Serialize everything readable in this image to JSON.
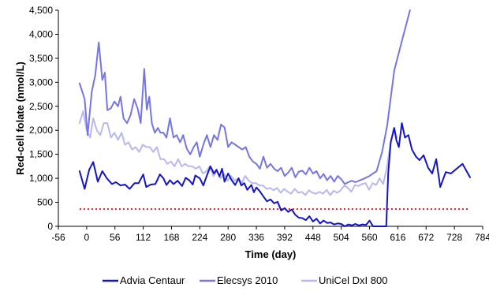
{
  "chart_data": {
    "type": "line",
    "title": "",
    "xlabel": "Time (day)",
    "ylabel": "Red-cell folate (nmol/L)",
    "xlim": [
      -56,
      784
    ],
    "ylim": [
      0,
      4500
    ],
    "x_ticks": [
      -56,
      0,
      56,
      112,
      168,
      224,
      280,
      336,
      392,
      448,
      504,
      560,
      616,
      672,
      728,
      784
    ],
    "y_ticks": [
      0,
      500,
      1000,
      1500,
      2000,
      2500,
      3000,
      3500,
      4000,
      4500
    ],
    "y_tick_labels": [
      "0",
      "500",
      "1,000",
      "1,500",
      "2,000",
      "2,500",
      "3,000",
      "3,500",
      "4,000",
      "4,500"
    ],
    "grid": false,
    "legend_position": "bottom",
    "reference_line": {
      "y": 360,
      "style": "dotted",
      "color": "#e8141c"
    },
    "series": [
      {
        "name": "Advia Centaur",
        "color": "#1414c8",
        "points": [
          [
            -14,
            1150
          ],
          [
            -4,
            780
          ],
          [
            5,
            1180
          ],
          [
            13,
            1340
          ],
          [
            22,
            930
          ],
          [
            31,
            1150
          ],
          [
            40,
            1000
          ],
          [
            50,
            880
          ],
          [
            58,
            920
          ],
          [
            67,
            850
          ],
          [
            76,
            870
          ],
          [
            85,
            780
          ],
          [
            95,
            900
          ],
          [
            103,
            900
          ],
          [
            112,
            1080
          ],
          [
            118,
            820
          ],
          [
            127,
            870
          ],
          [
            136,
            880
          ],
          [
            145,
            1080
          ],
          [
            152,
            1000
          ],
          [
            158,
            860
          ],
          [
            165,
            960
          ],
          [
            172,
            880
          ],
          [
            180,
            950
          ],
          [
            189,
            840
          ],
          [
            196,
            1010
          ],
          [
            203,
            960
          ],
          [
            210,
            870
          ],
          [
            215,
            1060
          ],
          [
            224,
            1000
          ],
          [
            231,
            850
          ],
          [
            238,
            1060
          ],
          [
            245,
            1250
          ],
          [
            252,
            1100
          ],
          [
            257,
            1180
          ],
          [
            263,
            1040
          ],
          [
            268,
            1200
          ],
          [
            273,
            930
          ],
          [
            280,
            1100
          ],
          [
            287,
            960
          ],
          [
            294,
            860
          ],
          [
            301,
            1000
          ],
          [
            306,
            850
          ],
          [
            312,
            900
          ],
          [
            318,
            760
          ],
          [
            326,
            860
          ],
          [
            331,
            710
          ],
          [
            336,
            810
          ],
          [
            342,
            740
          ],
          [
            350,
            620
          ],
          [
            357,
            520
          ],
          [
            364,
            560
          ],
          [
            371,
            480
          ],
          [
            378,
            510
          ],
          [
            385,
            330
          ],
          [
            392,
            380
          ],
          [
            399,
            300
          ],
          [
            406,
            350
          ],
          [
            413,
            240
          ],
          [
            420,
            180
          ],
          [
            427,
            170
          ],
          [
            434,
            130
          ],
          [
            441,
            210
          ],
          [
            448,
            100
          ],
          [
            455,
            160
          ],
          [
            462,
            60
          ],
          [
            469,
            120
          ],
          [
            476,
            70
          ],
          [
            483,
            80
          ],
          [
            490,
            40
          ],
          [
            497,
            60
          ],
          [
            504,
            50
          ],
          [
            511,
            0
          ],
          [
            518,
            40
          ],
          [
            525,
            20
          ],
          [
            532,
            50
          ],
          [
            539,
            20
          ],
          [
            546,
            40
          ],
          [
            553,
            30
          ],
          [
            560,
            120
          ],
          [
            567,
            0
          ],
          [
            574,
            0
          ],
          [
            581,
            0
          ],
          [
            588,
            0
          ],
          [
            593,
            0
          ],
          [
            597,
            1100
          ],
          [
            602,
            1750
          ],
          [
            609,
            2050
          ],
          [
            613,
            1800
          ],
          [
            618,
            1650
          ],
          [
            624,
            2150
          ],
          [
            630,
            1850
          ],
          [
            637,
            1900
          ],
          [
            644,
            1600
          ],
          [
            652,
            1450
          ],
          [
            659,
            1380
          ],
          [
            667,
            1480
          ],
          [
            676,
            1220
          ],
          [
            684,
            1100
          ],
          [
            692,
            1400
          ],
          [
            700,
            820
          ],
          [
            711,
            1130
          ],
          [
            721,
            1100
          ],
          [
            744,
            1300
          ],
          [
            759,
            1020
          ]
        ]
      },
      {
        "name": "Elecsys 2010",
        "color": "#7575e6",
        "points": [
          [
            -14,
            2980
          ],
          [
            -4,
            2650
          ],
          [
            2,
            1900
          ],
          [
            10,
            2800
          ],
          [
            17,
            3150
          ],
          [
            24,
            3830
          ],
          [
            31,
            3050
          ],
          [
            36,
            3200
          ],
          [
            41,
            2420
          ],
          [
            48,
            2460
          ],
          [
            55,
            2600
          ],
          [
            62,
            2500
          ],
          [
            67,
            2700
          ],
          [
            73,
            2250
          ],
          [
            80,
            2150
          ],
          [
            87,
            2320
          ],
          [
            94,
            2650
          ],
          [
            101,
            2450
          ],
          [
            107,
            2150
          ],
          [
            114,
            3280
          ],
          [
            119,
            2430
          ],
          [
            124,
            2700
          ],
          [
            129,
            2150
          ],
          [
            135,
            1950
          ],
          [
            141,
            2050
          ],
          [
            146,
            1950
          ],
          [
            152,
            1950
          ],
          [
            158,
            1850
          ],
          [
            165,
            2250
          ],
          [
            172,
            1850
          ],
          [
            178,
            1900
          ],
          [
            185,
            1750
          ],
          [
            191,
            1900
          ],
          [
            198,
            1620
          ],
          [
            205,
            1500
          ],
          [
            212,
            1650
          ],
          [
            218,
            1750
          ],
          [
            224,
            1450
          ],
          [
            231,
            1700
          ],
          [
            238,
            1900
          ],
          [
            245,
            1650
          ],
          [
            252,
            1900
          ],
          [
            259,
            1800
          ],
          [
            266,
            2120
          ],
          [
            273,
            2060
          ],
          [
            280,
            1650
          ],
          [
            287,
            1750
          ],
          [
            294,
            1700
          ],
          [
            301,
            1650
          ],
          [
            308,
            1600
          ],
          [
            315,
            1650
          ],
          [
            322,
            1450
          ],
          [
            329,
            1350
          ],
          [
            336,
            1300
          ],
          [
            343,
            1200
          ],
          [
            350,
            1450
          ],
          [
            357,
            1220
          ],
          [
            364,
            1300
          ],
          [
            371,
            1200
          ],
          [
            378,
            1150
          ],
          [
            385,
            1220
          ],
          [
            392,
            1050
          ],
          [
            399,
            1120
          ],
          [
            406,
            1220
          ],
          [
            413,
            1020
          ],
          [
            420,
            1140
          ],
          [
            427,
            1160
          ],
          [
            434,
            1080
          ],
          [
            441,
            1220
          ],
          [
            448,
            1100
          ],
          [
            455,
            1150
          ],
          [
            462,
            1000
          ],
          [
            469,
            1090
          ],
          [
            476,
            960
          ],
          [
            483,
            1050
          ],
          [
            490,
            930
          ],
          [
            497,
            1050
          ],
          [
            504,
            980
          ],
          [
            511,
            880
          ],
          [
            518,
            920
          ],
          [
            525,
            950
          ],
          [
            532,
            920
          ],
          [
            546,
            980
          ],
          [
            560,
            1050
          ],
          [
            574,
            1150
          ],
          [
            585,
            1550
          ],
          [
            595,
            2100
          ],
          [
            609,
            3250
          ],
          [
            625,
            3900
          ],
          [
            640,
            4500
          ]
        ]
      },
      {
        "name": "UniCel DxI 800",
        "color": "#b8b8f0",
        "points": [
          [
            -14,
            2150
          ],
          [
            -7,
            2400
          ],
          [
            0,
            2000
          ],
          [
            7,
            1850
          ],
          [
            13,
            2250
          ],
          [
            20,
            2000
          ],
          [
            27,
            1900
          ],
          [
            34,
            2150
          ],
          [
            41,
            2150
          ],
          [
            48,
            1850
          ],
          [
            55,
            1950
          ],
          [
            62,
            1800
          ],
          [
            69,
            1950
          ],
          [
            76,
            1700
          ],
          [
            83,
            1750
          ],
          [
            90,
            1600
          ],
          [
            97,
            1650
          ],
          [
            104,
            1550
          ],
          [
            111,
            1700
          ],
          [
            118,
            1650
          ],
          [
            125,
            1650
          ],
          [
            132,
            1550
          ],
          [
            139,
            1650
          ],
          [
            146,
            1400
          ],
          [
            153,
            1400
          ],
          [
            160,
            1300
          ],
          [
            167,
            1350
          ],
          [
            174,
            1250
          ],
          [
            181,
            1400
          ],
          [
            188,
            1250
          ],
          [
            195,
            1300
          ],
          [
            202,
            1250
          ],
          [
            209,
            1250
          ],
          [
            216,
            1200
          ],
          [
            223,
            1250
          ],
          [
            230,
            1100
          ],
          [
            237,
            1150
          ],
          [
            244,
            1250
          ],
          [
            251,
            1050
          ],
          [
            258,
            1150
          ],
          [
            265,
            1000
          ],
          [
            272,
            1100
          ],
          [
            279,
            950
          ],
          [
            286,
            1050
          ],
          [
            293,
            950
          ],
          [
            300,
            1000
          ],
          [
            307,
            900
          ],
          [
            314,
            1050
          ],
          [
            321,
            950
          ],
          [
            328,
            900
          ],
          [
            335,
            900
          ],
          [
            342,
            850
          ],
          [
            349,
            850
          ],
          [
            356,
            780
          ],
          [
            363,
            800
          ],
          [
            370,
            750
          ],
          [
            377,
            800
          ],
          [
            384,
            700
          ],
          [
            391,
            780
          ],
          [
            398,
            720
          ],
          [
            405,
            680
          ],
          [
            412,
            780
          ],
          [
            419,
            700
          ],
          [
            426,
            720
          ],
          [
            433,
            650
          ],
          [
            440,
            750
          ],
          [
            447,
            700
          ],
          [
            454,
            680
          ],
          [
            461,
            720
          ],
          [
            468,
            680
          ],
          [
            475,
            760
          ],
          [
            482,
            650
          ],
          [
            489,
            740
          ],
          [
            496,
            700
          ],
          [
            503,
            750
          ],
          [
            510,
            850
          ],
          [
            517,
            800
          ],
          [
            524,
            720
          ],
          [
            531,
            860
          ],
          [
            538,
            840
          ],
          [
            545,
            880
          ],
          [
            552,
            900
          ],
          [
            559,
            760
          ],
          [
            566,
            900
          ],
          [
            573,
            860
          ],
          [
            580,
            1000
          ],
          [
            587,
            880
          ],
          [
            594,
            1200
          ],
          [
            601,
            1700
          ],
          [
            608,
            2050
          ],
          [
            614,
            1850
          ]
        ]
      }
    ]
  }
}
